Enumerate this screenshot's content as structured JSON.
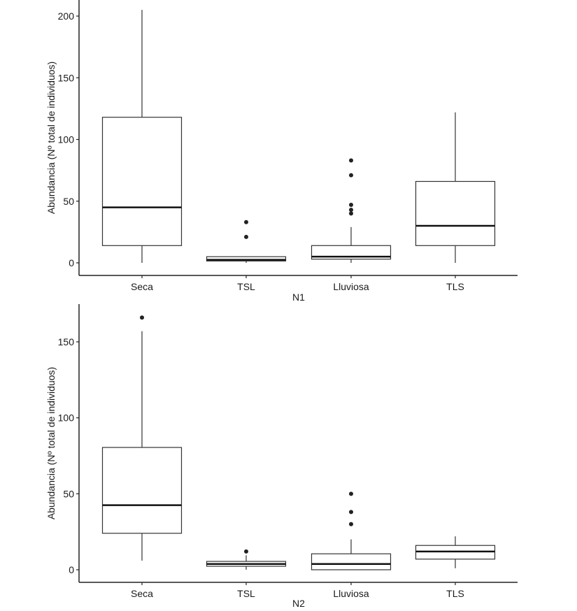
{
  "chart_data": [
    {
      "type": "boxplot",
      "xlabel": "N1",
      "ylabel": "Abundancia (Nº total de individuos)",
      "ylim": [
        -10,
        210
      ],
      "yticks": [
        0,
        50,
        100,
        150,
        200
      ],
      "ytick_labels": [
        "0",
        "50",
        "100",
        "150",
        "200"
      ],
      "categories": [
        "Seca",
        "TSL",
        "Lluviosa",
        "TLS"
      ],
      "boxes": [
        {
          "category": "Seca",
          "whisker_low": 0,
          "q1": 14,
          "median": 45,
          "q3": 118,
          "whisker_high": 205,
          "outliers": []
        },
        {
          "category": "TSL",
          "whisker_low": 0,
          "q1": 1.5,
          "median": 2.5,
          "q3": 5,
          "whisker_high": 5,
          "outliers": [
            21,
            33
          ]
        },
        {
          "category": "Lluviosa",
          "whisker_low": 0,
          "q1": 3,
          "median": 5,
          "q3": 14,
          "whisker_high": 29,
          "outliers": [
            40,
            43,
            47,
            71,
            83
          ]
        },
        {
          "category": "TLS",
          "whisker_low": 0,
          "q1": 14,
          "median": 30,
          "q3": 66,
          "whisker_high": 122,
          "outliers": []
        }
      ]
    },
    {
      "type": "boxplot",
      "xlabel": "N2",
      "ylabel": "Abundancia (Nº total de individuos)",
      "ylim": [
        -8,
        172
      ],
      "yticks": [
        0,
        50,
        100,
        150
      ],
      "ytick_labels": [
        "0",
        "50",
        "100",
        "150"
      ],
      "categories": [
        "Seca",
        "TSL",
        "Lluviosa",
        "TLS"
      ],
      "boxes": [
        {
          "category": "Seca",
          "whisker_low": 6,
          "q1": 24,
          "median": 42.5,
          "q3": 80.5,
          "whisker_high": 157,
          "outliers": [
            166
          ]
        },
        {
          "category": "TSL",
          "whisker_low": 0,
          "q1": 2.3,
          "median": 3.8,
          "q3": 5.5,
          "whisker_high": 9.5,
          "outliers": [
            12
          ]
        },
        {
          "category": "Lluviosa",
          "whisker_low": 0,
          "q1": 0,
          "median": 3.8,
          "q3": 10.5,
          "whisker_high": 20,
          "outliers": [
            30,
            38,
            50
          ]
        },
        {
          "category": "TLS",
          "whisker_low": 1,
          "q1": 7,
          "median": 12,
          "q3": 16,
          "whisker_high": 22,
          "outliers": []
        }
      ]
    }
  ]
}
